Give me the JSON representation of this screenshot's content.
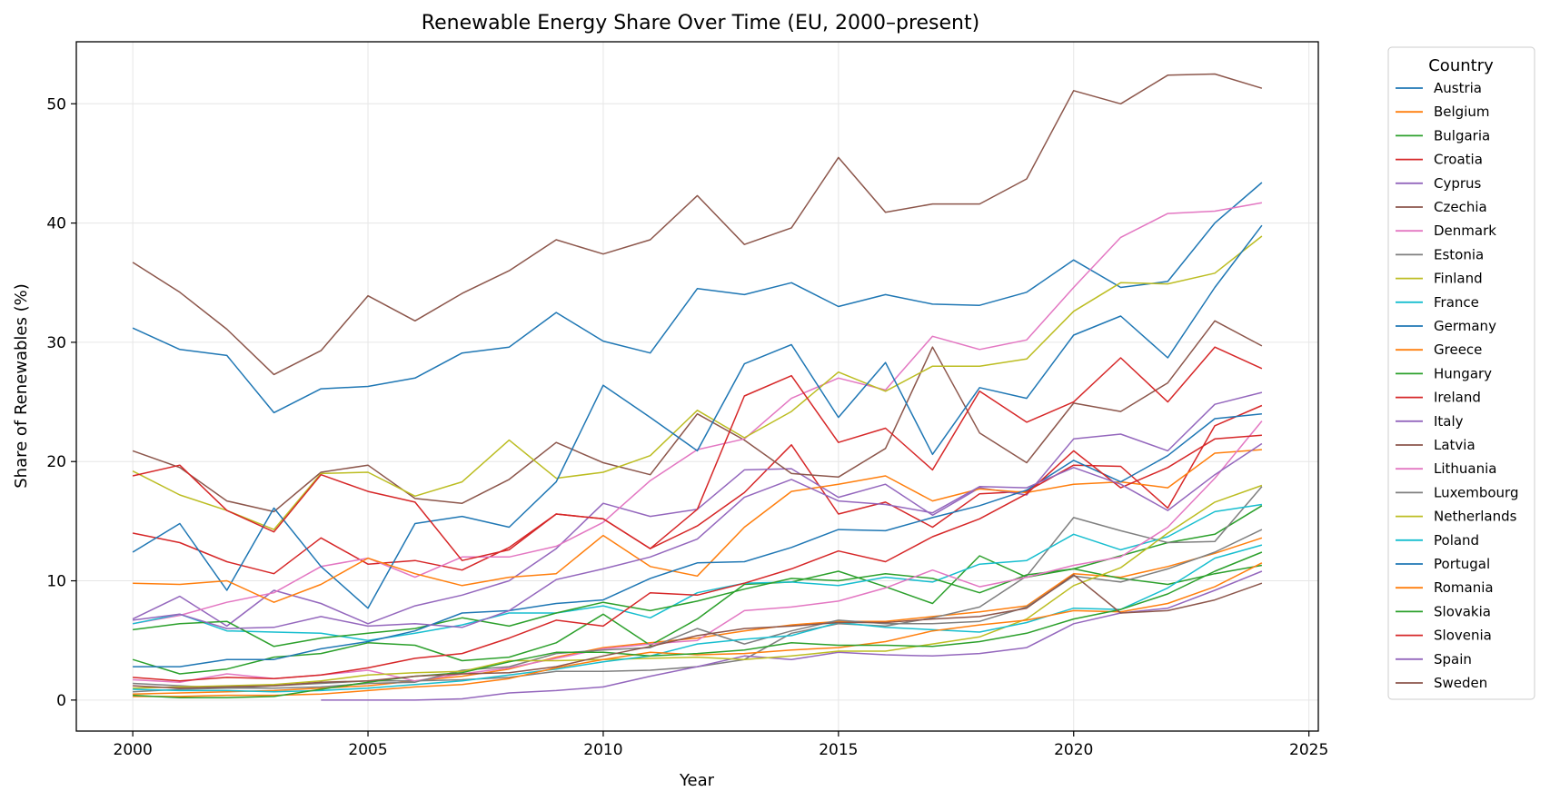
{
  "chart_data": {
    "type": "line",
    "title": "Renewable Energy Share Over Time (EU, 2000–present)",
    "xlabel": "Year",
    "ylabel": "Share of Renewables (%)",
    "xlim": [
      1998.8,
      2025.2
    ],
    "ylim": [
      -2.6,
      55.2
    ],
    "x_ticks": [
      2000,
      2005,
      2010,
      2015,
      2020,
      2025
    ],
    "y_ticks": [
      0,
      10,
      20,
      30,
      40,
      50
    ],
    "grid": true,
    "legend_title": "Country",
    "legend_placement": "outside-right",
    "x": [
      2000,
      2001,
      2002,
      2003,
      2004,
      2005,
      2006,
      2007,
      2008,
      2009,
      2010,
      2011,
      2012,
      2013,
      2014,
      2015,
      2016,
      2017,
      2018,
      2019,
      2020,
      2021,
      2022,
      2023,
      2024
    ],
    "series": [
      {
        "name": "Austria",
        "color": "#1f77b4",
        "values": [
          31.2,
          29.4,
          28.9,
          24.1,
          26.1,
          26.3,
          27.0,
          29.1,
          29.6,
          32.5,
          30.1,
          29.1,
          34.5,
          34.0,
          35.0,
          33.0,
          34.0,
          33.2,
          33.1,
          34.2,
          36.9,
          34.6,
          35.1,
          40.0,
          43.4
        ]
      },
      {
        "name": "Belgium",
        "color": "#ff7f0e",
        "values": [
          0.5,
          0.6,
          0.7,
          0.8,
          1.0,
          1.2,
          1.6,
          2.0,
          2.6,
          3.6,
          4.4,
          4.8,
          5.2,
          5.8,
          6.3,
          6.6,
          6.6,
          7.0,
          7.4,
          7.9,
          10.6,
          10.3,
          11.2,
          12.3,
          13.6
        ]
      },
      {
        "name": "Bulgaria",
        "color": "#2ca02c",
        "values": [
          3.4,
          2.2,
          2.6,
          3.6,
          3.9,
          4.8,
          4.6,
          3.3,
          3.6,
          4.8,
          7.2,
          4.6,
          6.8,
          9.7,
          9.9,
          10.8,
          9.5,
          8.1,
          12.1,
          10.3,
          11.0,
          12.1,
          13.2,
          13.9,
          16.3
        ]
      },
      {
        "name": "Croatia",
        "color": "#d62728",
        "values": [
          14.0,
          13.2,
          11.6,
          10.6,
          13.6,
          11.4,
          11.7,
          10.9,
          12.8,
          15.6,
          15.2,
          12.7,
          14.6,
          17.4,
          21.4,
          15.6,
          16.6,
          14.5,
          17.3,
          17.5,
          19.7,
          19.6,
          16.1,
          23.0,
          24.7
        ]
      },
      {
        "name": "Cyprus",
        "color": "#9467bd",
        "values": [
          6.8,
          8.7,
          6.2,
          9.2,
          8.1,
          6.4,
          7.9,
          8.8,
          10.0,
          12.7,
          16.5,
          15.4,
          16.0,
          19.3,
          19.4,
          17.0,
          18.1,
          15.5,
          17.8,
          17.2,
          21.9,
          22.3,
          20.9,
          24.8,
          25.8
        ]
      },
      {
        "name": "Czechia",
        "color": "#8c564b",
        "values": [
          20.9,
          19.5,
          16.7,
          15.8,
          19.1,
          19.7,
          16.9,
          16.5,
          18.5,
          21.6,
          19.9,
          18.9,
          24.0,
          21.8,
          19.0,
          18.7,
          21.1,
          29.6,
          22.4,
          19.9,
          24.9,
          24.2,
          26.6,
          31.8,
          29.7
        ]
      },
      {
        "name": "Denmark",
        "color": "#e377c2",
        "values": [
          6.4,
          7.1,
          8.2,
          9.0,
          11.2,
          11.9,
          10.3,
          12.0,
          12.0,
          12.9,
          14.9,
          18.4,
          21.0,
          21.9,
          25.3,
          27.0,
          26.0,
          30.5,
          29.4,
          30.2,
          34.6,
          38.8,
          40.8,
          41.0,
          41.7
        ]
      },
      {
        "name": "Estonia",
        "color": "#7f7f7f",
        "values": [
          0.7,
          0.9,
          1.0,
          1.2,
          1.4,
          1.6,
          1.6,
          1.7,
          1.9,
          2.4,
          2.4,
          2.5,
          2.8,
          3.4,
          5.6,
          6.4,
          6.2,
          6.9,
          7.8,
          10.4,
          15.3,
          14.2,
          13.2,
          13.3,
          17.9
        ]
      },
      {
        "name": "Finland",
        "color": "#bcbd22",
        "values": [
          19.2,
          17.2,
          15.9,
          14.3,
          19.0,
          19.1,
          17.1,
          18.3,
          21.8,
          18.6,
          19.1,
          20.5,
          24.3,
          22.0,
          24.2,
          27.5,
          25.9,
          28.0,
          28.0,
          28.6,
          32.6,
          35.0,
          34.9,
          35.8,
          38.9
        ]
      },
      {
        "name": "France",
        "color": "#17becf",
        "values": [
          6.4,
          7.2,
          5.8,
          5.7,
          5.6,
          5.0,
          5.6,
          6.3,
          7.3,
          7.3,
          7.9,
          6.9,
          9.0,
          9.8,
          9.9,
          9.6,
          10.3,
          9.9,
          11.4,
          11.7,
          13.9,
          12.6,
          13.7,
          15.8,
          16.4
        ]
      },
      {
        "name": "Germany",
        "color": "#1f77b4",
        "values": [
          12.4,
          14.8,
          9.2,
          16.1,
          11.2,
          7.7,
          14.8,
          15.4,
          14.5,
          18.3,
          26.4,
          23.7,
          20.9,
          28.2,
          29.8,
          23.7,
          28.3,
          20.6,
          26.2,
          25.3,
          30.6,
          32.2,
          28.7,
          34.6,
          39.8
        ]
      },
      {
        "name": "Greece",
        "color": "#ff7f0e",
        "values": [
          9.8,
          9.7,
          10.0,
          8.2,
          9.7,
          11.9,
          10.6,
          9.6,
          10.3,
          10.6,
          13.8,
          11.2,
          10.4,
          14.5,
          17.5,
          18.1,
          18.8,
          16.7,
          17.7,
          17.4,
          18.1,
          18.3,
          17.8,
          20.7,
          21.0
        ]
      },
      {
        "name": "Hungary",
        "color": "#2ca02c",
        "values": [
          5.9,
          6.4,
          6.6,
          4.5,
          5.2,
          5.6,
          6.0,
          6.9,
          6.2,
          7.3,
          8.2,
          7.5,
          8.3,
          9.3,
          10.2,
          10.0,
          10.6,
          10.2,
          9.0,
          10.5,
          11.0,
          10.2,
          9.7,
          10.6,
          11.3
        ]
      },
      {
        "name": "Ireland",
        "color": "#d62728",
        "values": [
          18.8,
          19.7,
          15.9,
          14.1,
          18.9,
          17.5,
          16.6,
          11.7,
          12.6,
          15.6,
          15.2,
          12.7,
          16.0,
          25.5,
          27.2,
          21.6,
          22.8,
          19.3,
          25.9,
          23.3,
          25.0,
          28.7,
          25.0,
          29.6,
          27.8
        ]
      },
      {
        "name": "Italy",
        "color": "#9467bd",
        "values": [
          null,
          null,
          null,
          null,
          0.0,
          0.0,
          0.0,
          0.1,
          0.6,
          0.8,
          1.1,
          2.0,
          2.8,
          3.7,
          3.4,
          4.0,
          3.8,
          3.7,
          3.9,
          4.4,
          6.4,
          7.3,
          7.7,
          9.2,
          10.8
        ]
      },
      {
        "name": "Latvia",
        "color": "#8c564b",
        "values": [
          36.7,
          34.2,
          31.1,
          27.3,
          29.3,
          33.9,
          31.8,
          34.1,
          36.0,
          38.6,
          37.4,
          38.6,
          42.3,
          38.2,
          39.6,
          45.5,
          40.9,
          41.6,
          41.6,
          43.7,
          51.1,
          50.0,
          52.4,
          52.5,
          51.3
        ]
      },
      {
        "name": "Lithuania",
        "color": "#e377c2",
        "values": [
          1.7,
          1.5,
          2.2,
          1.8,
          2.1,
          2.5,
          1.6,
          2.2,
          2.7,
          3.5,
          4.3,
          4.7,
          5.0,
          7.5,
          7.8,
          8.3,
          9.4,
          10.9,
          9.5,
          10.3,
          11.3,
          12.0,
          14.5,
          18.6,
          23.4
        ]
      },
      {
        "name": "Luxembourg",
        "color": "#7f7f7f",
        "values": [
          1.4,
          1.2,
          1.0,
          1.0,
          1.1,
          1.4,
          1.5,
          2.5,
          2.8,
          3.9,
          4.2,
          4.4,
          6.0,
          4.7,
          5.8,
          6.7,
          6.4,
          6.4,
          6.6,
          7.8,
          10.4,
          9.9,
          11.0,
          12.4,
          14.3
        ]
      },
      {
        "name": "Netherlands",
        "color": "#bcbd22",
        "values": [
          1.0,
          1.1,
          1.2,
          1.3,
          1.6,
          2.1,
          2.3,
          2.4,
          3.3,
          3.3,
          3.4,
          3.5,
          3.6,
          3.4,
          3.7,
          4.1,
          4.1,
          4.7,
          5.3,
          6.8,
          9.6,
          11.1,
          14.0,
          16.6,
          18.0
        ]
      },
      {
        "name": "Poland",
        "color": "#17becf",
        "values": [
          0.9,
          0.8,
          0.8,
          0.7,
          0.8,
          1.0,
          1.3,
          1.6,
          2.1,
          2.6,
          3.2,
          3.7,
          4.7,
          5.1,
          5.4,
          6.5,
          6.1,
          5.9,
          5.7,
          6.5,
          7.7,
          7.6,
          9.4,
          11.9,
          13.0
        ]
      },
      {
        "name": "Portugal",
        "color": "#1f77b4",
        "values": [
          2.8,
          2.8,
          3.4,
          3.4,
          4.3,
          4.9,
          5.8,
          7.3,
          7.5,
          8.1,
          8.4,
          10.2,
          11.5,
          11.6,
          12.8,
          14.3,
          14.2,
          15.3,
          16.3,
          17.6,
          20.1,
          18.3,
          20.5,
          23.6,
          24.0
        ]
      },
      {
        "name": "Romania",
        "color": "#ff7f0e",
        "values": [
          0.3,
          0.3,
          0.4,
          0.4,
          0.5,
          0.8,
          1.1,
          1.3,
          1.8,
          2.7,
          3.4,
          4.0,
          3.8,
          3.9,
          4.2,
          4.4,
          4.9,
          5.8,
          6.3,
          6.7,
          7.5,
          7.4,
          8.1,
          9.5,
          11.5
        ]
      },
      {
        "name": "Slovakia",
        "color": "#2ca02c",
        "values": [
          0.4,
          0.2,
          0.2,
          0.3,
          0.9,
          1.5,
          2.0,
          2.3,
          3.2,
          4.0,
          4.0,
          3.7,
          3.9,
          4.2,
          4.8,
          4.6,
          4.6,
          4.5,
          4.9,
          5.6,
          6.8,
          7.6,
          8.9,
          10.8,
          12.4
        ]
      },
      {
        "name": "Slovenia",
        "color": "#d62728",
        "values": [
          1.9,
          1.6,
          1.9,
          1.8,
          2.1,
          2.7,
          3.5,
          3.9,
          5.2,
          6.7,
          6.2,
          9.0,
          8.8,
          9.8,
          11.0,
          12.5,
          11.6,
          13.7,
          15.2,
          17.3,
          20.9,
          17.8,
          19.5,
          21.9,
          22.2
        ]
      },
      {
        "name": "Spain",
        "color": "#9467bd",
        "values": [
          6.7,
          7.2,
          6.0,
          6.1,
          7.0,
          6.2,
          6.4,
          6.1,
          7.5,
          10.1,
          11.0,
          12.0,
          13.5,
          17.0,
          18.5,
          16.7,
          16.4,
          15.7,
          17.9,
          17.8,
          19.5,
          18.1,
          15.9,
          18.9,
          21.5
        ]
      },
      {
        "name": "Sweden",
        "color": "#8c564b",
        "values": [
          1.2,
          1.0,
          1.1,
          1.2,
          1.5,
          1.6,
          2.0,
          2.2,
          2.3,
          2.8,
          3.7,
          4.5,
          5.4,
          6.0,
          6.2,
          6.5,
          6.5,
          6.8,
          7.0,
          7.7,
          10.5,
          7.3,
          7.5,
          8.4,
          9.8
        ]
      }
    ]
  }
}
